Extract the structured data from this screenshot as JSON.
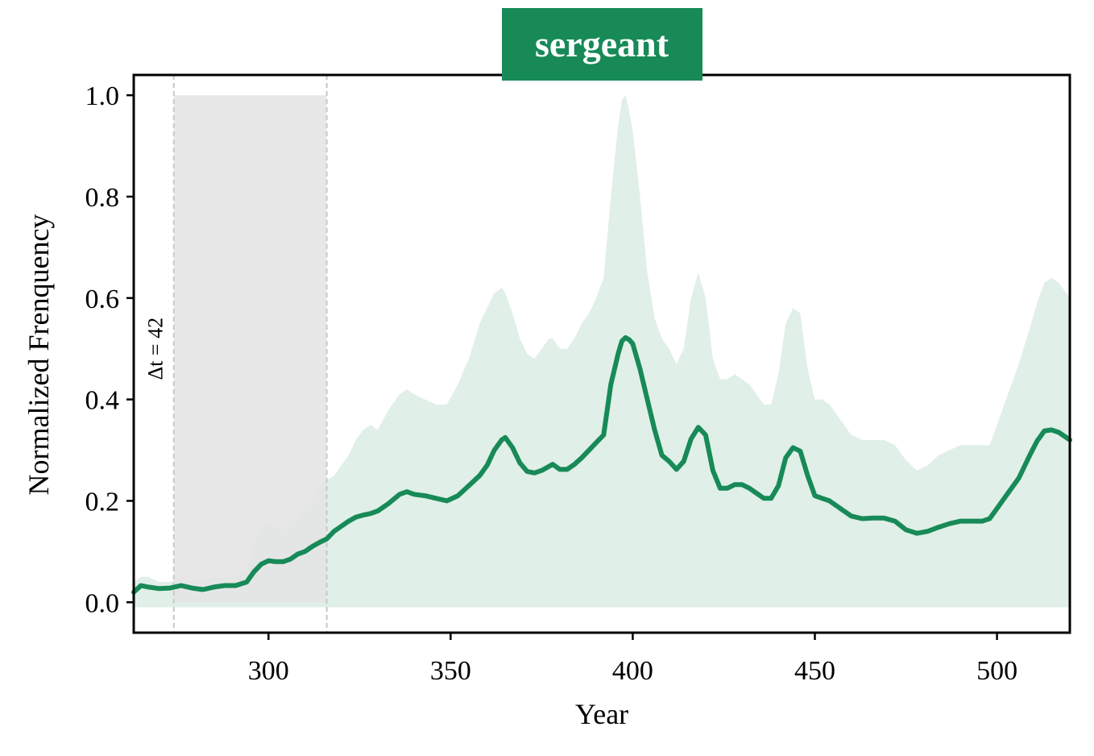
{
  "chart_data": {
    "type": "line",
    "title": "sergeant",
    "xlabel": "Year",
    "ylabel": "Normalized Frenquency",
    "xlim": [
      263,
      520
    ],
    "ylim": [
      -0.06,
      1.04
    ],
    "x_ticks": [
      300,
      350,
      400,
      450,
      500
    ],
    "x_tick_labels": [
      "300",
      "350",
      "400",
      "450",
      "500"
    ],
    "y_ticks": [
      0.0,
      0.2,
      0.4,
      0.6,
      0.8,
      1.0
    ],
    "y_tick_labels": [
      "0.0",
      "0.2",
      "0.4",
      "0.6",
      "0.8",
      "1.0"
    ],
    "grid": false,
    "colors": {
      "line": "#178a58",
      "band": "#e0efe8",
      "shaded_region": "#e4e4e4",
      "guide_lines": "#c8c8c8",
      "title_bg": "#178a58"
    },
    "highlight_region": {
      "x_start": 274,
      "x_end": 316,
      "y_top": 1.0,
      "label": "Δt = 42"
    },
    "series": [
      {
        "x": [
          263,
          265,
          267,
          270,
          273,
          276,
          279,
          282,
          285,
          288,
          291,
          294,
          296,
          298,
          300,
          302,
          304,
          306,
          308,
          310,
          312,
          314,
          316,
          318,
          320,
          322,
          324,
          326,
          328,
          330,
          333,
          336,
          338,
          340,
          343,
          346,
          349,
          352,
          355,
          358,
          360,
          362,
          364,
          365,
          367,
          369,
          371,
          373,
          375,
          377,
          378,
          380,
          382,
          384,
          386,
          388,
          390,
          392,
          393,
          394,
          395,
          396,
          397,
          398,
          399,
          400,
          402,
          404,
          406,
          408,
          410,
          412,
          414,
          416,
          418,
          420,
          422,
          424,
          426,
          428,
          430,
          432,
          434,
          436,
          438,
          440,
          442,
          444,
          446,
          448,
          450,
          452,
          454,
          457,
          460,
          463,
          466,
          469,
          472,
          475,
          478,
          481,
          484,
          487,
          490,
          493,
          496,
          498,
          500,
          503,
          506,
          509,
          511,
          513,
          515,
          517,
          520
        ],
        "values": [
          0.02,
          0.033,
          0.03,
          0.027,
          0.028,
          0.033,
          0.028,
          0.025,
          0.03,
          0.033,
          0.033,
          0.04,
          0.06,
          0.075,
          0.082,
          0.08,
          0.08,
          0.085,
          0.095,
          0.1,
          0.11,
          0.118,
          0.125,
          0.14,
          0.15,
          0.16,
          0.168,
          0.172,
          0.175,
          0.18,
          0.195,
          0.213,
          0.218,
          0.213,
          0.21,
          0.205,
          0.2,
          0.21,
          0.23,
          0.25,
          0.27,
          0.3,
          0.32,
          0.325,
          0.305,
          0.275,
          0.258,
          0.255,
          0.26,
          0.268,
          0.272,
          0.262,
          0.262,
          0.272,
          0.285,
          0.3,
          0.315,
          0.33,
          0.38,
          0.43,
          0.46,
          0.49,
          0.515,
          0.522,
          0.518,
          0.51,
          0.46,
          0.4,
          0.34,
          0.29,
          0.278,
          0.262,
          0.278,
          0.322,
          0.345,
          0.33,
          0.26,
          0.225,
          0.225,
          0.232,
          0.232,
          0.225,
          0.215,
          0.205,
          0.205,
          0.23,
          0.285,
          0.305,
          0.298,
          0.25,
          0.21,
          0.205,
          0.2,
          0.185,
          0.17,
          0.165,
          0.166,
          0.166,
          0.16,
          0.143,
          0.136,
          0.14,
          0.148,
          0.155,
          0.16,
          0.16,
          0.16,
          0.165,
          0.185,
          0.215,
          0.245,
          0.29,
          0.318,
          0.338,
          0.34,
          0.335,
          0.32
        ],
        "band_upper": [
          0.04,
          0.05,
          0.05,
          0.04,
          0.04,
          0.05,
          0.04,
          0.04,
          0.05,
          0.05,
          0.05,
          0.06,
          0.12,
          0.15,
          0.16,
          0.15,
          0.14,
          0.16,
          0.17,
          0.19,
          0.2,
          0.23,
          0.24,
          0.25,
          0.27,
          0.29,
          0.32,
          0.34,
          0.35,
          0.34,
          0.38,
          0.41,
          0.42,
          0.41,
          0.4,
          0.39,
          0.39,
          0.43,
          0.48,
          0.55,
          0.58,
          0.61,
          0.62,
          0.61,
          0.57,
          0.52,
          0.49,
          0.48,
          0.5,
          0.52,
          0.52,
          0.5,
          0.5,
          0.52,
          0.55,
          0.57,
          0.6,
          0.64,
          0.72,
          0.8,
          0.87,
          0.94,
          0.99,
          1.0,
          0.97,
          0.93,
          0.8,
          0.65,
          0.56,
          0.52,
          0.5,
          0.47,
          0.5,
          0.6,
          0.65,
          0.6,
          0.48,
          0.44,
          0.44,
          0.45,
          0.44,
          0.43,
          0.41,
          0.39,
          0.39,
          0.45,
          0.55,
          0.58,
          0.57,
          0.46,
          0.4,
          0.4,
          0.39,
          0.36,
          0.33,
          0.32,
          0.32,
          0.32,
          0.31,
          0.28,
          0.26,
          0.27,
          0.29,
          0.3,
          0.31,
          0.31,
          0.31,
          0.31,
          0.35,
          0.41,
          0.47,
          0.54,
          0.59,
          0.63,
          0.64,
          0.63,
          0.6
        ],
        "band_lower": -0.01
      }
    ]
  }
}
